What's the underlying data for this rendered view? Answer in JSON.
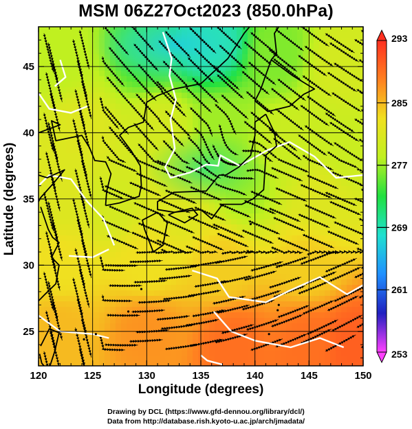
{
  "title": "MSM 06Z27Oct2023 (850.0hPa)",
  "x_axis": {
    "label": "Longitude (degrees)",
    "range": [
      120,
      150
    ],
    "ticks": [
      "120",
      "125",
      "130",
      "135",
      "140",
      "145",
      "150"
    ]
  },
  "y_axis": {
    "label": "Latitude  (degrees)",
    "range": [
      22.4,
      48
    ],
    "ticks": [
      "25",
      "30",
      "35",
      "40",
      "45"
    ]
  },
  "colorbar": {
    "range": [
      253,
      293
    ],
    "ticks": [
      "293",
      "285",
      "277",
      "269",
      "261",
      "253"
    ]
  },
  "credits": {
    "line1": "Drawing by DCL (https://www.gfd-dennou.org/library/dcl/)",
    "line2": "Data from http://database.rish.kyoto-u.ac.jp/arch/jmadata/"
  },
  "chart_data": {
    "type": "heatmap",
    "description_fields": {
      "variable": "temperature with wind streamlines",
      "level_hPa": 850.0
    },
    "colorscale": [
      "#ff40ff",
      "#2020c0",
      "#2090ff",
      "#20e0d0",
      "#20e040",
      "#c0f020",
      "#f0e020",
      "#ff8020",
      "#ff3020"
    ],
    "x_range": [
      120,
      150
    ],
    "y_range": [
      22.4,
      48
    ],
    "value_range": [
      253,
      293
    ],
    "field_samples": [
      {
        "lon": 122,
        "lat": 46,
        "value": 278
      },
      {
        "lon": 130,
        "lat": 46,
        "value": 274
      },
      {
        "lon": 136,
        "lat": 47,
        "value": 269
      },
      {
        "lon": 142,
        "lat": 46,
        "value": 276
      },
      {
        "lon": 148,
        "lat": 45,
        "value": 280
      },
      {
        "lon": 124,
        "lat": 40,
        "value": 281
      },
      {
        "lon": 131,
        "lat": 40,
        "value": 280
      },
      {
        "lon": 137,
        "lat": 40,
        "value": 277
      },
      {
        "lon": 143,
        "lat": 39,
        "value": 279
      },
      {
        "lon": 148,
        "lat": 39,
        "value": 279
      },
      {
        "lon": 122,
        "lat": 35,
        "value": 281
      },
      {
        "lon": 127,
        "lat": 35,
        "value": 280
      },
      {
        "lon": 133,
        "lat": 35,
        "value": 281
      },
      {
        "lon": 139,
        "lat": 36,
        "value": 277
      },
      {
        "lon": 146,
        "lat": 35,
        "value": 281
      },
      {
        "lon": 122,
        "lat": 30,
        "value": 283
      },
      {
        "lon": 130,
        "lat": 30,
        "value": 283
      },
      {
        "lon": 137,
        "lat": 30,
        "value": 284
      },
      {
        "lon": 145,
        "lat": 30,
        "value": 284
      },
      {
        "lon": 122,
        "lat": 25,
        "value": 285
      },
      {
        "lon": 130,
        "lat": 25,
        "value": 287
      },
      {
        "lon": 138,
        "lat": 24,
        "value": 289
      },
      {
        "lon": 145,
        "lat": 24,
        "value": 289
      },
      {
        "lon": 149,
        "lat": 24,
        "value": 290
      }
    ]
  }
}
